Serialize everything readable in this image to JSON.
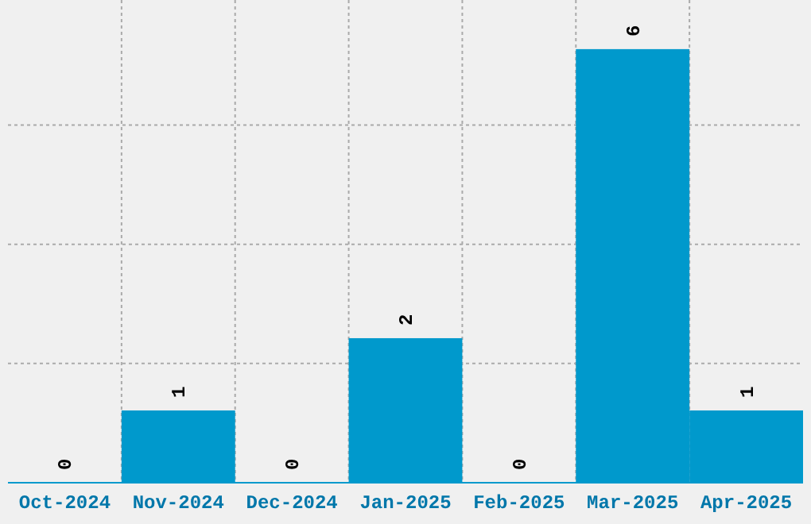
{
  "chart_data": {
    "type": "bar",
    "categories": [
      "Oct-2024",
      "Nov-2024",
      "Dec-2024",
      "Jan-2025",
      "Feb-2025",
      "Mar-2025",
      "Apr-2025"
    ],
    "values": [
      0,
      1,
      0,
      2,
      0,
      6,
      1
    ],
    "color": "#0099cc",
    "data_labels": true,
    "grid": true,
    "ylim": [
      0,
      6.68
    ],
    "yticks": [
      {
        "value": 1.65,
        "label": null
      },
      {
        "value": 3.3,
        "label": null
      },
      {
        "value": 4.95,
        "label": null
      }
    ],
    "tick_labels": "x"
  }
}
